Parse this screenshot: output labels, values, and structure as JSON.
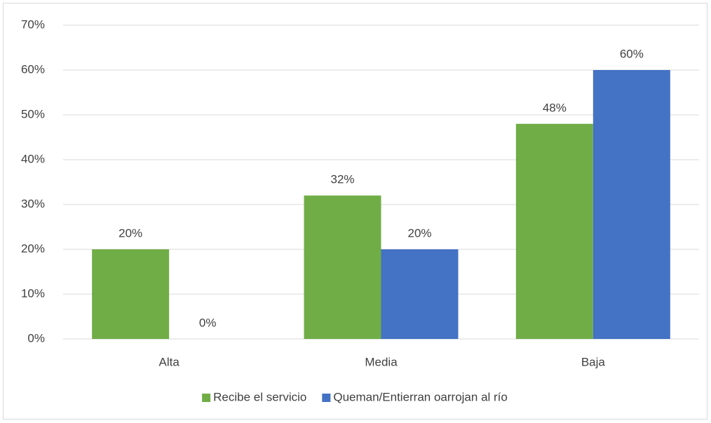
{
  "chart_data": {
    "type": "bar",
    "categories": [
      "Alta",
      "Media",
      "Baja"
    ],
    "series": [
      {
        "name": "Recibe el servicio",
        "color": "#70ad47",
        "values": [
          20,
          32,
          48
        ],
        "value_labels": [
          "20%",
          "32%",
          "48%"
        ]
      },
      {
        "name": "Queman/Entierran oarrojan al río",
        "color": "#4472c4",
        "values": [
          0,
          20,
          60
        ],
        "value_labels": [
          "0%",
          "20%",
          "60%"
        ]
      }
    ],
    "ylim": [
      0,
      70
    ],
    "yticks": [
      {
        "value": 0,
        "label": "0%"
      },
      {
        "value": 10,
        "label": "10%"
      },
      {
        "value": 20,
        "label": "20%"
      },
      {
        "value": 30,
        "label": "30%"
      },
      {
        "value": 40,
        "label": "40%"
      },
      {
        "value": 50,
        "label": "50%"
      },
      {
        "value": 60,
        "label": "60%"
      },
      {
        "value": 70,
        "label": "70%"
      }
    ],
    "grid": true,
    "legend": "bottom"
  }
}
